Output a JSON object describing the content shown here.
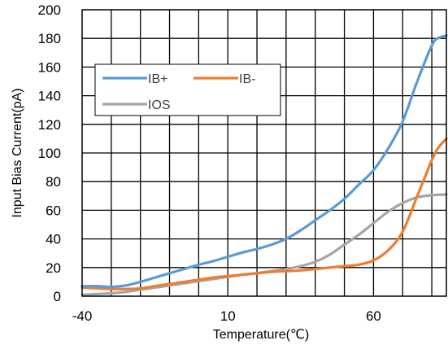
{
  "chart_data": {
    "type": "line",
    "title": "",
    "xlabel": "Temperature(℃)",
    "ylabel": "Input Bias Current(pA)",
    "xlim": [
      -40,
      85
    ],
    "ylim": [
      0,
      200
    ],
    "x_ticks": [
      -40,
      10,
      60
    ],
    "x_grid_step": 10,
    "y_ticks": [
      0,
      20,
      40,
      60,
      80,
      100,
      120,
      140,
      160,
      180,
      200
    ],
    "grid": true,
    "legend": {
      "placement": "top-left",
      "columns": 2
    },
    "series": [
      {
        "name": "IB+",
        "color": "#5B9BD5",
        "x": [
          -40,
          -35,
          -30,
          -25,
          -20,
          -15,
          -10,
          -5,
          0,
          5,
          10,
          15,
          20,
          25,
          30,
          35,
          40,
          45,
          50,
          55,
          60,
          65,
          70,
          75,
          80,
          82,
          85
        ],
        "y": [
          7,
          7,
          6.5,
          7.5,
          10,
          13,
          16,
          19,
          22,
          24.5,
          27.5,
          30.5,
          33,
          36,
          40,
          46,
          53,
          60,
          68,
          78,
          88,
          103,
          122,
          150,
          175,
          180,
          182
        ]
      },
      {
        "name": "IB-",
        "color": "#ED7D31",
        "x": [
          -40,
          -35,
          -30,
          -25,
          -20,
          -15,
          -10,
          -5,
          0,
          5,
          10,
          15,
          20,
          25,
          30,
          35,
          40,
          45,
          50,
          55,
          60,
          65,
          70,
          75,
          78,
          80,
          82,
          85
        ],
        "y": [
          6,
          5.5,
          5,
          5,
          5.5,
          7,
          8.5,
          10,
          11.5,
          13,
          14,
          15,
          16,
          17,
          17.5,
          18,
          19,
          20,
          21,
          22,
          25,
          32,
          45,
          70,
          85,
          95,
          103,
          110
        ]
      },
      {
        "name": "IOS",
        "color": "#A5A5A5",
        "x": [
          -40,
          -35,
          -30,
          -25,
          -20,
          -15,
          -10,
          -5,
          0,
          5,
          10,
          15,
          20,
          25,
          30,
          35,
          40,
          45,
          50,
          55,
          60,
          65,
          70,
          75,
          80,
          85
        ],
        "y": [
          1,
          1.5,
          2,
          3,
          4.5,
          6,
          7.5,
          9,
          10.5,
          12,
          13.5,
          15,
          16,
          17.5,
          19,
          21,
          24,
          29,
          36,
          43,
          51,
          59,
          65,
          69,
          70.5,
          71
        ]
      }
    ]
  }
}
